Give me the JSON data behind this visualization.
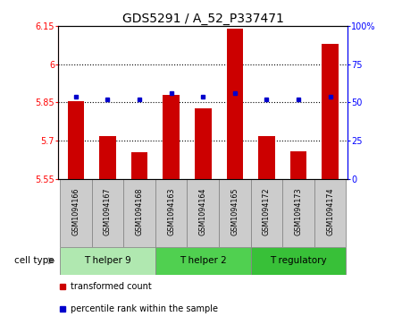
{
  "title": "GDS5291 / A_52_P337471",
  "samples": [
    "GSM1094166",
    "GSM1094167",
    "GSM1094168",
    "GSM1094163",
    "GSM1094164",
    "GSM1094165",
    "GSM1094172",
    "GSM1094173",
    "GSM1094174"
  ],
  "transformed_counts": [
    5.855,
    5.718,
    5.655,
    5.878,
    5.828,
    6.14,
    5.718,
    5.658,
    6.08
  ],
  "percentile_ranks": [
    54,
    52,
    52,
    56,
    54,
    56,
    52,
    52,
    54
  ],
  "ylim_left": [
    5.55,
    6.15
  ],
  "ylim_right": [
    0,
    100
  ],
  "yticks_left": [
    5.55,
    5.7,
    5.85,
    6.0,
    6.15
  ],
  "yticks_right": [
    0,
    25,
    50,
    75,
    100
  ],
  "ytick_labels_left": [
    "5.55",
    "5.7",
    "5.85",
    "6",
    "6.15"
  ],
  "ytick_labels_right": [
    "0",
    "25",
    "50",
    "75",
    "100%"
  ],
  "hlines": [
    5.7,
    5.85,
    6.0
  ],
  "cell_types": [
    {
      "label": "T helper 9",
      "start": 0,
      "end": 3,
      "color": "#b0e8b0"
    },
    {
      "label": "T helper 2",
      "start": 3,
      "end": 6,
      "color": "#50d050"
    },
    {
      "label": "T regulatory",
      "start": 6,
      "end": 9,
      "color": "#38c038"
    }
  ],
  "bar_color": "#CC0000",
  "dot_color": "#0000CC",
  "bar_width": 0.52,
  "bar_bottom": 5.55,
  "legend": [
    {
      "color": "#CC0000",
      "label": "transformed count"
    },
    {
      "color": "#0000CC",
      "label": "percentile rank within the sample"
    }
  ],
  "cell_type_label": "cell type",
  "title_fontsize": 10,
  "tick_fontsize": 7,
  "sample_fontsize": 5.8,
  "ct_fontsize": 7.5
}
